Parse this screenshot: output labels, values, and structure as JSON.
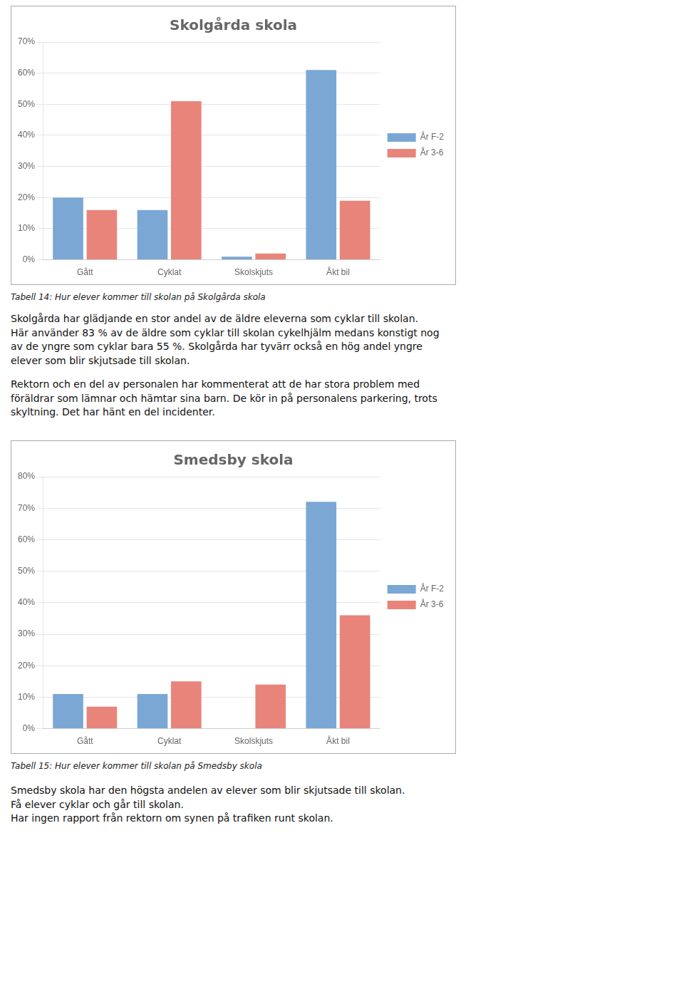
{
  "chart_data": [
    {
      "type": "bar",
      "title": "Skolgårda skola",
      "categories": [
        "Gått",
        "Cyklat",
        "Skolskjuts",
        "Åkt bil"
      ],
      "series": [
        {
          "name": "År F-2",
          "color": "#7BA7D4",
          "values": [
            0.2,
            0.16,
            0.01,
            0.61
          ]
        },
        {
          "name": "År 3-6",
          "color": "#E8847A",
          "values": [
            0.16,
            0.51,
            0.02,
            0.19
          ]
        }
      ],
      "ylim": [
        0,
        0.7
      ],
      "yticks": [
        {
          "value": 0.0,
          "label": "0%"
        },
        {
          "value": 0.1,
          "label": "10%"
        },
        {
          "value": 0.2,
          "label": "20%"
        },
        {
          "value": 0.3,
          "label": "30%"
        },
        {
          "value": 0.4,
          "label": "40%"
        },
        {
          "value": 0.5,
          "label": "50%"
        },
        {
          "value": 0.6,
          "label": "60%"
        },
        {
          "value": 0.7,
          "label": "70%"
        }
      ],
      "grid": true,
      "legend": "right",
      "caption": "Tabell 14: Hur elever kommer till skolan på Skolgårda skola",
      "annotations": [
        "Skolgårda har glädjande en stor andel av de äldre eleverna som cyklar till skolan.\nHär använder 83 % av de äldre som cyklar till skolan cykelhjälm medans konstigt nog\nav de yngre som cyklar bara 55 %. Skolgårda har tyvärr också en hög andel yngre\nelever som blir skjutsade till skolan.",
        "Rektorn och en del av personalen har kommenterat att de har stora problem med\nföräldrar som lämnar och hämtar sina barn. De kör in på personalens parkering, trots\nskyltning. Det har hänt en del incidenter."
      ]
    },
    {
      "type": "bar",
      "title": "Smedsby skola",
      "categories": [
        "Gått",
        "Cyklat",
        "Skolskjuts",
        "Åkt bil"
      ],
      "series": [
        {
          "name": "År F-2",
          "color": "#7BA7D4",
          "values": [
            0.11,
            0.11,
            0.0,
            0.72
          ]
        },
        {
          "name": "År 3-6",
          "color": "#E8847A",
          "values": [
            0.07,
            0.15,
            0.14,
            0.36
          ]
        }
      ],
      "ylim": [
        0,
        0.8
      ],
      "yticks": [
        {
          "value": 0.0,
          "label": "0%"
        },
        {
          "value": 0.1,
          "label": "10%"
        },
        {
          "value": 0.2,
          "label": "20%"
        },
        {
          "value": 0.3,
          "label": "30%"
        },
        {
          "value": 0.4,
          "label": "40%"
        },
        {
          "value": 0.5,
          "label": "50%"
        },
        {
          "value": 0.6,
          "label": "60%"
        },
        {
          "value": 0.7,
          "label": "70%"
        },
        {
          "value": 0.8,
          "label": "80%"
        }
      ],
      "grid": true,
      "legend": "right",
      "caption": "Tabell 15: Hur elever kommer till skolan på Smedsby skola",
      "annotations": [
        "Smedsby skola har den högsta andelen av elever som blir skjutsade till skolan.\nFå elever cyklar och går till skolan.\nHar ingen rapport från rektorn om synen på trafiken runt skolan."
      ]
    }
  ]
}
